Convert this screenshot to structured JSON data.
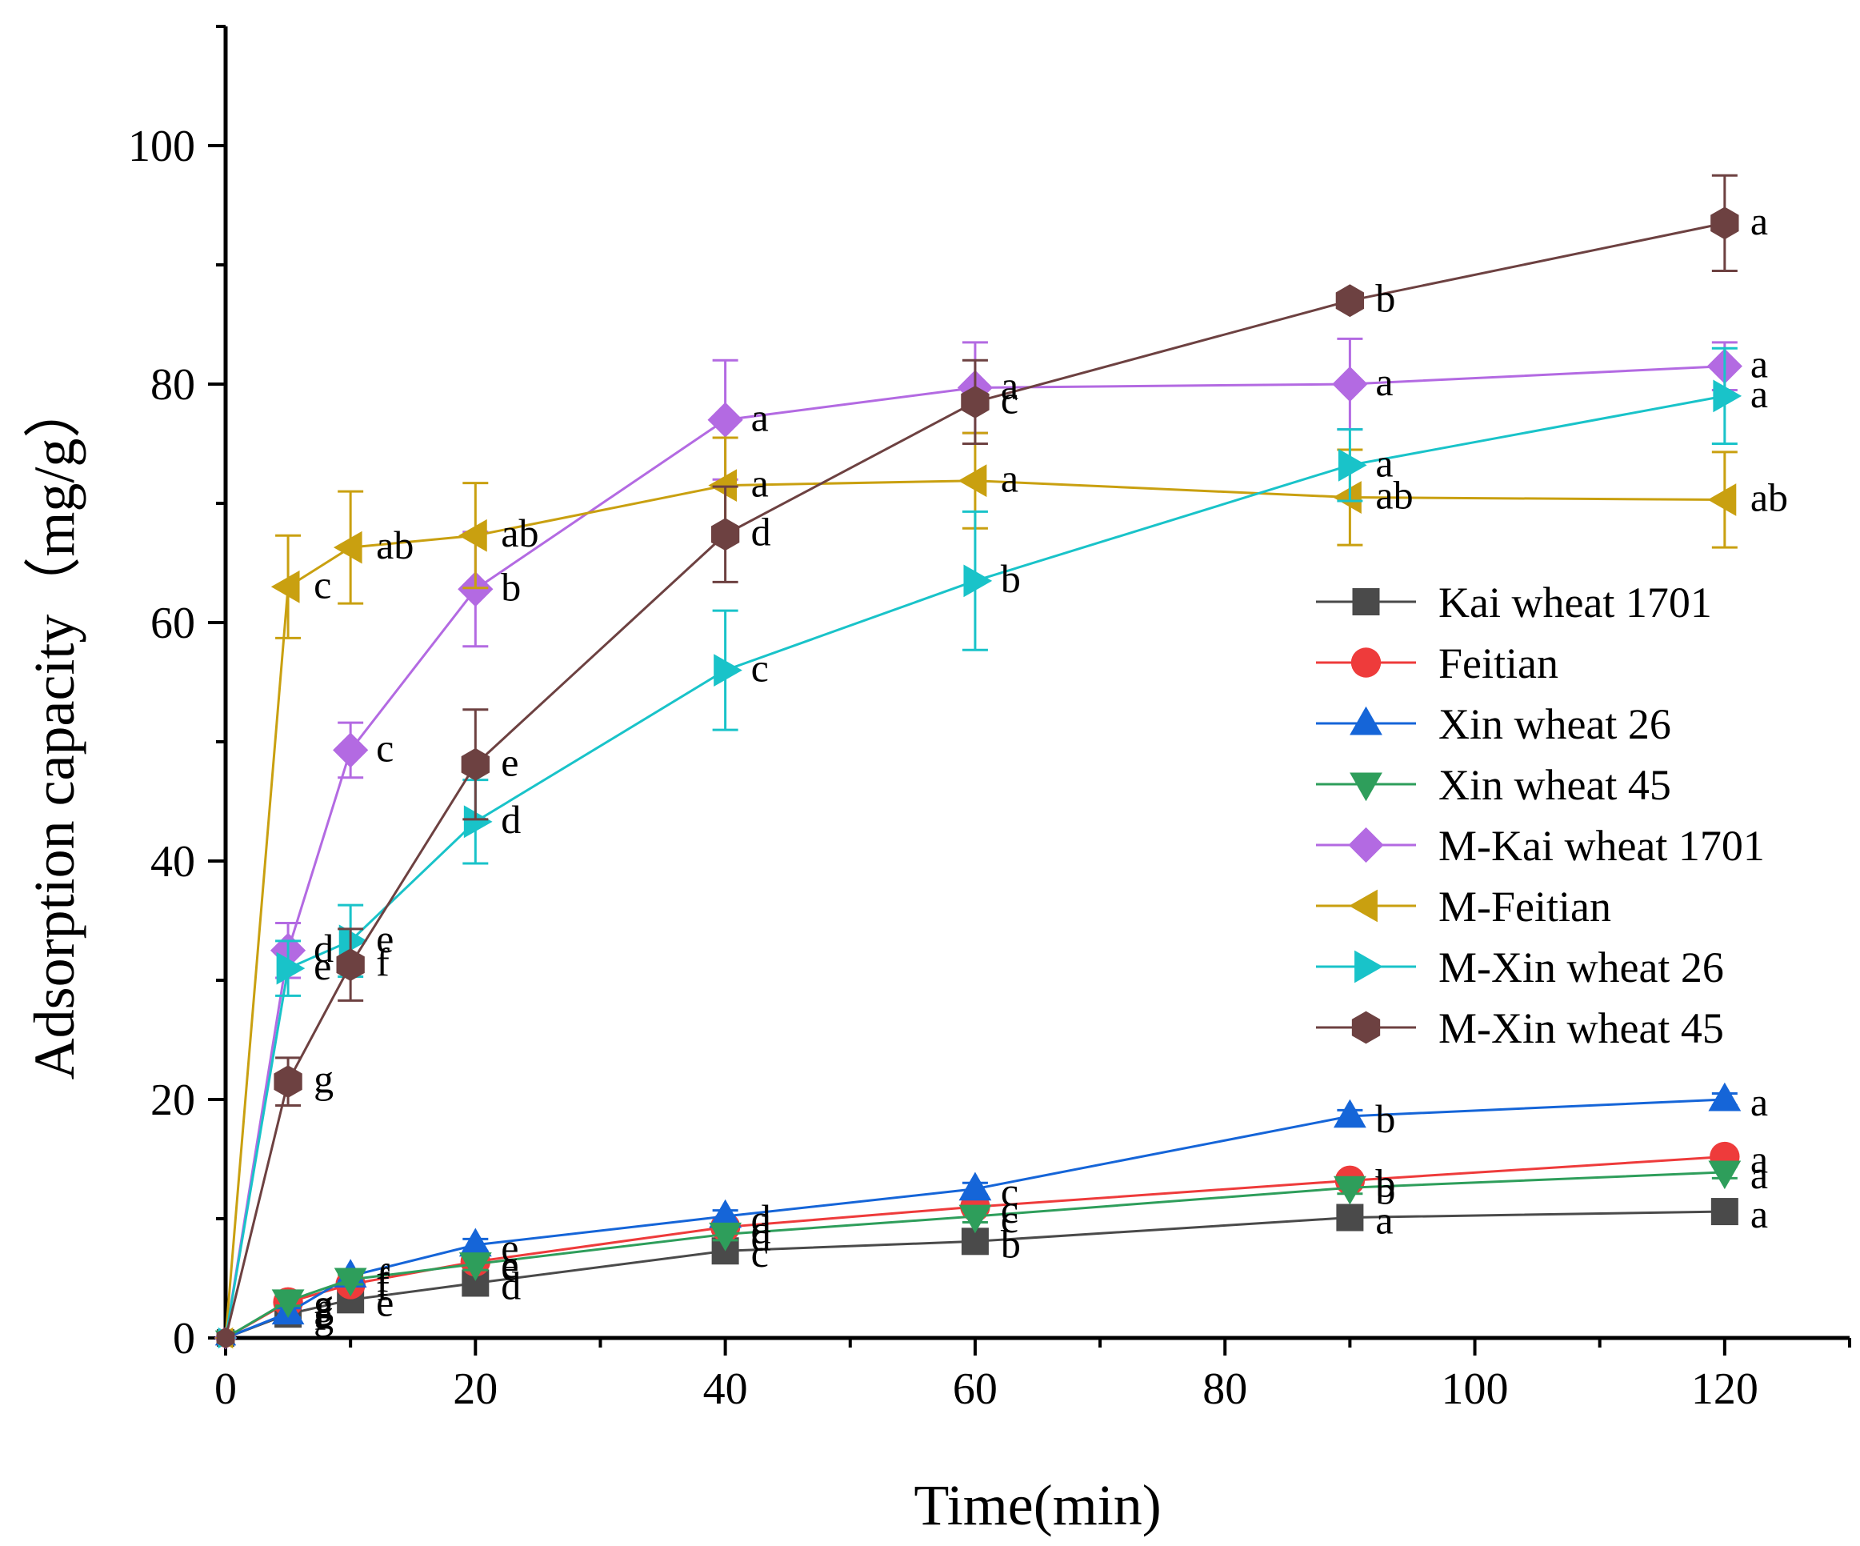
{
  "chart_data": {
    "type": "line",
    "title": "",
    "xlabel": "Time(min)",
    "ylabel": "Adsorption capacity（mg/g）",
    "xlim": [
      0,
      130
    ],
    "ylim": [
      0,
      110
    ],
    "xticks": [
      0,
      20,
      40,
      60,
      80,
      100,
      120
    ],
    "yticks": [
      0,
      20,
      40,
      60,
      80,
      100
    ],
    "x": [
      0,
      5,
      10,
      20,
      40,
      60,
      90,
      120
    ],
    "legend_position": "right-center",
    "series": [
      {
        "name": "Kai wheat 1701",
        "color": "#4a4a4a",
        "marker": "square",
        "values": [
          0,
          2.0,
          3.2,
          4.6,
          7.3,
          8.1,
          10.1,
          10.6
        ],
        "errors": [
          0,
          0.4,
          0.4,
          0.5,
          0.5,
          0.5,
          0.5,
          0.5
        ],
        "letters": [
          "",
          "f",
          "e",
          "d",
          "c",
          "b",
          "a",
          "a"
        ]
      },
      {
        "name": "Feitian",
        "color": "#ee3b3b",
        "marker": "circle",
        "values": [
          0,
          3.0,
          4.5,
          6.4,
          9.3,
          11.0,
          13.2,
          15.2
        ],
        "errors": [
          0,
          0.4,
          0.4,
          0.5,
          0.5,
          0.5,
          0.5,
          0.5
        ],
        "letters": [
          "",
          "g",
          "f",
          "e",
          "d",
          "c",
          "b",
          "a"
        ]
      },
      {
        "name": "Xin wheat 26",
        "color": "#1565d8",
        "marker": "triangle-up",
        "values": [
          0,
          2.1,
          5.2,
          7.8,
          10.2,
          12.5,
          18.6,
          20.0
        ],
        "errors": [
          0,
          0.4,
          0.4,
          0.5,
          0.5,
          0.5,
          0.5,
          0.5
        ],
        "letters": [
          "",
          "g",
          "f",
          "e",
          "d",
          "c",
          "b",
          "a"
        ]
      },
      {
        "name": "Xin wheat 45",
        "color": "#2e9e5b",
        "marker": "triangle-down",
        "values": [
          0,
          3.1,
          4.9,
          6.2,
          8.7,
          10.2,
          12.6,
          13.9
        ],
        "errors": [
          0,
          0.4,
          0.4,
          0.5,
          0.5,
          0.5,
          0.5,
          0.5
        ],
        "letters": [
          "",
          "g",
          "f",
          "e",
          "d",
          "c",
          "b",
          "a"
        ]
      },
      {
        "name": " M-Kai wheat 1701",
        "color": "#b36ae2",
        "marker": "diamond",
        "values": [
          0,
          32.5,
          49.3,
          62.8,
          77.0,
          79.7,
          80.0,
          81.5
        ],
        "errors": [
          0,
          2.3,
          2.3,
          4.8,
          5.0,
          3.8,
          3.8,
          2.0
        ],
        "letters": [
          "",
          "d",
          "c",
          "b",
          "a",
          "a",
          "a",
          "a"
        ]
      },
      {
        "name": " M-Feitian",
        "color": "#c9a010",
        "marker": "triangle-left",
        "values": [
          0,
          63.0,
          66.3,
          67.3,
          71.5,
          71.9,
          70.5,
          70.3
        ],
        "errors": [
          0,
          4.3,
          4.7,
          4.4,
          4.0,
          4.0,
          4.0,
          4.0
        ],
        "letters": [
          "",
          "c",
          "ab",
          "ab",
          "a",
          "a",
          "ab",
          "ab"
        ]
      },
      {
        "name": " M-Xin wheat 26",
        "color": "#19c3c9",
        "marker": "triangle-right",
        "values": [
          0,
          31.0,
          33.3,
          43.3,
          56.0,
          63.5,
          73.2,
          79.0
        ],
        "errors": [
          0,
          2.3,
          3.0,
          3.5,
          5.0,
          5.8,
          3.0,
          4.0
        ],
        "letters": [
          "",
          "e",
          "e",
          "d",
          "c",
          "b",
          "a",
          "a"
        ]
      },
      {
        "name": " M-Xin wheat 45",
        "color": "#6d4141",
        "marker": "hexagon",
        "values": [
          0,
          21.5,
          31.3,
          48.1,
          67.4,
          78.5,
          87.0,
          93.5
        ],
        "errors": [
          0,
          2.0,
          3.0,
          4.6,
          4.0,
          3.5,
          0,
          4.0
        ],
        "letters": [
          "",
          "g",
          "f",
          "e",
          "d",
          "c",
          "b",
          "a"
        ]
      }
    ]
  }
}
